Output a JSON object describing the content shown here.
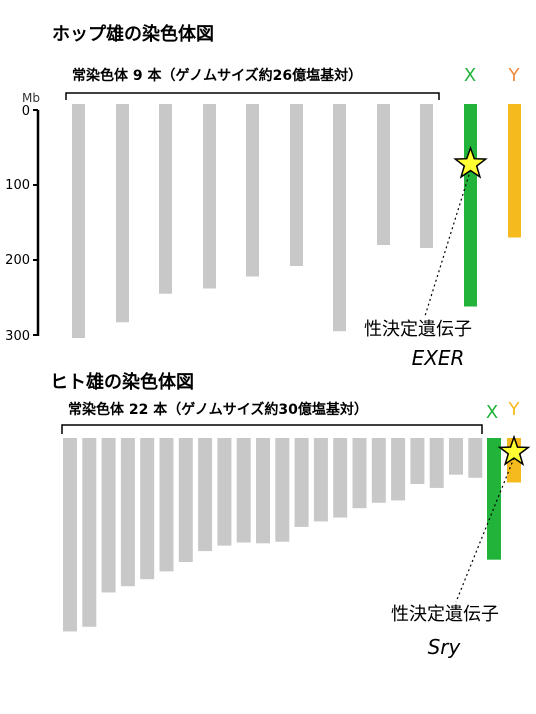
{
  "hop": {
    "title": "ホップ雄の染色体図",
    "autosome_label": "常染色体 9 本（ゲノムサイズ約26億塩基対）",
    "x_label": "X",
    "y_label": "Y",
    "axis_unit": "Mb",
    "axis_ticks": [
      "0",
      "100",
      "200",
      "300"
    ],
    "autosome_lengths_mb": [
      304,
      283,
      245,
      238,
      222,
      208,
      295,
      180,
      184
    ],
    "x_length_mb": 262,
    "y_length_mb": 170,
    "gene_position_mb": 80,
    "gene_label": "性決定遺伝子",
    "gene_name": "EXER"
  },
  "human": {
    "title": "ヒト雄の染色体図",
    "autosome_label": "常染色体 22 本（ゲノムサイズ約30億塩基対）",
    "x_label": "X",
    "y_label": "Y",
    "autosome_lengths_mb": [
      248,
      242,
      198,
      190,
      181,
      171,
      159,
      145,
      138,
      134,
      135,
      133,
      114,
      107,
      102,
      90,
      83,
      80,
      59,
      64,
      47,
      51
    ],
    "x_length_mb": 156,
    "y_length_mb": 57,
    "gene_label": "性決定遺伝子",
    "gene_name": "Sry"
  },
  "colors": {
    "autosome": "#c8c8c8",
    "x_chromosome": "#22b33b",
    "y_chromosome": "#f5bb1e",
    "x_label": "#22b33b",
    "y_label": "#f08a3c",
    "star_fill": "#ffff33"
  }
}
